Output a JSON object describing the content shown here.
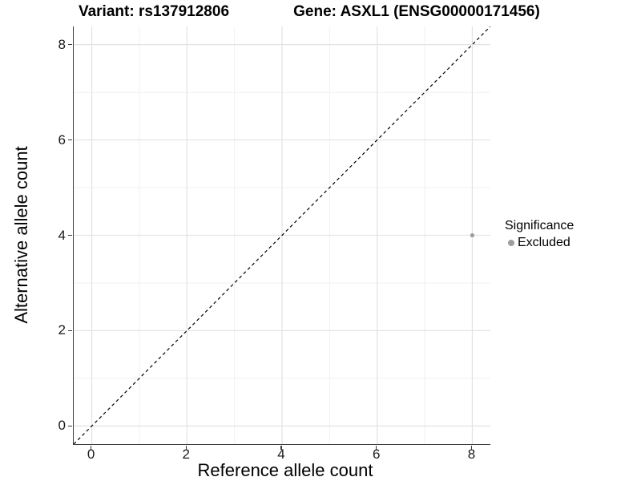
{
  "chart_data": {
    "type": "scatter",
    "title_variant": "Variant: rs137912806",
    "title_gene": "Gene: ASXL1 (ENSG00000171456)",
    "xlabel": "Reference allele count",
    "ylabel": "Alternative allele count",
    "xlim": [
      -0.38,
      8.38
    ],
    "ylim": [
      -0.38,
      8.38
    ],
    "x_ticks": [
      0,
      2,
      4,
      6,
      8
    ],
    "y_ticks": [
      0,
      2,
      4,
      6,
      8
    ],
    "x_minor_ticks": [
      1,
      3,
      5,
      7
    ],
    "y_minor_ticks": [
      1,
      3,
      5,
      7
    ],
    "grid": true,
    "points": [
      {
        "x": 8,
        "y": 4,
        "significance": "Excluded"
      }
    ],
    "point_radius_px": 2.6,
    "abline": {
      "slope": 1,
      "intercept": 0,
      "style": "dashed",
      "color": "#000000"
    },
    "legend": {
      "title": "Significance",
      "position": "right",
      "items": [
        {
          "label": "Excluded",
          "color": "#9e9e9e"
        }
      ]
    },
    "colors": {
      "background": "#ffffff",
      "major_grid": "#e3e3e3",
      "minor_grid": "#f1f1f1",
      "axis_line": "#3a3a3a",
      "title_text": "#000000",
      "tick_text": "#1a1a1a"
    }
  }
}
